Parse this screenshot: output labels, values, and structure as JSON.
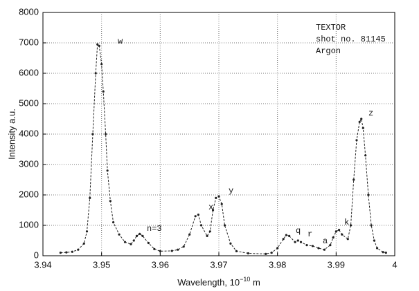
{
  "chart_data": {
    "type": "line",
    "xlabel": [
      "Wavelength, 10",
      "−10",
      " m"
    ],
    "ylabel": "Intensity a.u.",
    "annotation": [
      "TEXTOR",
      "shot no. 81145",
      "Argon"
    ],
    "peak_labels": [
      "w",
      "n=3",
      "x",
      "y",
      "q",
      "r",
      "a",
      "k",
      "z"
    ],
    "x": [
      3.943,
      3.944,
      3.945,
      3.946,
      3.947,
      3.9475,
      3.948,
      3.9485,
      3.949,
      3.9493,
      3.9496,
      3.95,
      3.9503,
      3.9507,
      3.951,
      3.9515,
      3.952,
      3.953,
      3.954,
      3.955,
      3.9555,
      3.956,
      3.9565,
      3.957,
      3.958,
      3.959,
      3.96,
      3.962,
      3.963,
      3.964,
      3.965,
      3.966,
      3.9665,
      3.967,
      3.968,
      3.9685,
      3.969,
      3.9695,
      3.97,
      3.9705,
      3.971,
      3.972,
      3.973,
      3.975,
      3.978,
      3.979,
      3.98,
      3.981,
      3.9815,
      3.982,
      3.983,
      3.9835,
      3.984,
      3.985,
      3.986,
      3.987,
      3.988,
      3.989,
      3.9895,
      3.99,
      3.9905,
      3.991,
      3.992,
      3.9925,
      3.993,
      3.9935,
      3.994,
      3.9943,
      3.9946,
      3.995,
      3.9955,
      3.996,
      3.9965,
      3.997,
      3.998,
      3.9985
    ],
    "series": [
      {
        "color": "#222222",
        "values": [
          100,
          110,
          130,
          200,
          400,
          800,
          1900,
          4000,
          6000,
          6950,
          6900,
          6300,
          5400,
          4000,
          2800,
          1800,
          1100,
          700,
          450,
          380,
          500,
          650,
          720,
          650,
          420,
          220,
          150,
          160,
          200,
          300,
          700,
          1300,
          1350,
          1000,
          650,
          800,
          1500,
          1900,
          1950,
          1700,
          1000,
          400,
          150,
          80,
          60,
          100,
          250,
          550,
          680,
          650,
          450,
          500,
          450,
          350,
          320,
          250,
          200,
          350,
          600,
          800,
          850,
          700,
          550,
          1000,
          2500,
          3800,
          4400,
          4500,
          4200,
          3300,
          2000,
          1000,
          500,
          250,
          120,
          100
        ]
      }
    ],
    "xlim": [
      3.94,
      4
    ],
    "xticks": [
      3.94,
      3.95,
      3.96,
      3.97,
      3.98,
      3.99,
      4
    ],
    "ylim": [
      0,
      8000
    ],
    "yticks": [
      0,
      1000,
      2000,
      3000,
      4000,
      5000,
      6000,
      7000,
      8000
    ],
    "grid": true
  }
}
